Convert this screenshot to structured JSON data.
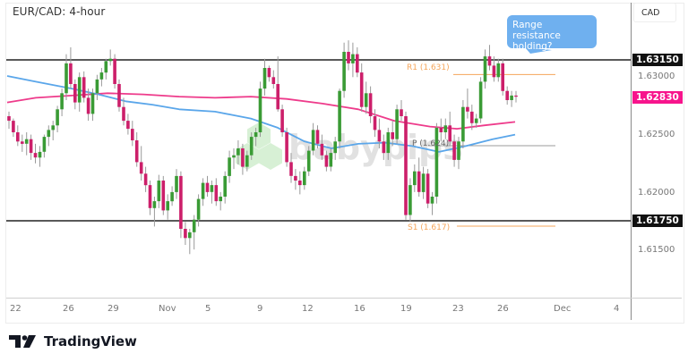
{
  "header": {
    "title": "EUR/CAD: 4-hour"
  },
  "price_axis": {
    "currency": "CAD",
    "ticks": [
      "1.63000",
      "1.62500",
      "1.62000",
      "1.61500"
    ],
    "resistance_tag": "1.63150",
    "support_tag": "1.61750",
    "current_price_tag": "1.62830"
  },
  "time_axis": {
    "ticks": [
      "22",
      "26",
      "29",
      "Nov",
      "5",
      "9",
      "12",
      "16",
      "19",
      "23",
      "26",
      "Dec",
      "4"
    ]
  },
  "annotation": {
    "text": "Range resistance holding?"
  },
  "pivots": {
    "r1": "R1 (1.631)",
    "p": "P (1.624)",
    "s1": "S1 (1.617)"
  },
  "watermark": "babypips",
  "footer": {
    "brand": "TradingView"
  },
  "colors": {
    "bull": "#3a9b35",
    "bear": "#cc1f6a",
    "wick": "#9a9a9a",
    "sma_pink": "#ee3b8b",
    "sma_blue": "#5aa6ea",
    "pivot_orange": "#f5a55a",
    "pivot_grey": "#9b9b9b",
    "range_line": "#222222",
    "current_tag": "#f7148c",
    "bubble": "#6fb0ef"
  },
  "chart_data": {
    "type": "candlestick",
    "title": "EUR/CAD: 4-hour",
    "xlabel": "",
    "ylabel": "CAD",
    "ylim": [
      1.612,
      1.634
    ],
    "x_ticks": [
      "22",
      "26",
      "29",
      "Nov",
      "5",
      "9",
      "12",
      "16",
      "19",
      "23",
      "26",
      "Dec",
      "4"
    ],
    "y_ticks": [
      1.615,
      1.62,
      1.625,
      1.63
    ],
    "horizontal_lines": [
      {
        "name": "Range resistance",
        "value": 1.6315,
        "color": "#222222"
      },
      {
        "name": "Range support",
        "value": 1.6175,
        "color": "#222222"
      },
      {
        "name": "R1",
        "value": 1.631,
        "color": "#f5a55a"
      },
      {
        "name": "P",
        "value": 1.624,
        "color": "#9b9b9b"
      },
      {
        "name": "S1",
        "value": 1.617,
        "color": "#f5a55a"
      }
    ],
    "current_price": 1.6283,
    "series": [
      {
        "name": "SMA (pink, slower)",
        "color": "#ee3b8b",
        "points": [
          [
            8,
            1.6278
          ],
          [
            40,
            1.6282
          ],
          [
            80,
            1.6284
          ],
          [
            120,
            1.6286
          ],
          [
            160,
            1.6285
          ],
          [
            200,
            1.6283
          ],
          [
            240,
            1.6282
          ],
          [
            280,
            1.6283
          ],
          [
            320,
            1.6281
          ],
          [
            360,
            1.6277
          ],
          [
            400,
            1.6272
          ],
          [
            440,
            1.6262
          ],
          [
            480,
            1.6257
          ],
          [
            510,
            1.6255
          ],
          [
            540,
            1.6258
          ],
          [
            575,
            1.6261
          ]
        ]
      },
      {
        "name": "SMA (blue, faster)",
        "color": "#5aa6ea",
        "points": [
          [
            8,
            1.6301
          ],
          [
            40,
            1.6296
          ],
          [
            80,
            1.629
          ],
          [
            110,
            1.6285
          ],
          [
            140,
            1.6279
          ],
          [
            170,
            1.6276
          ],
          [
            200,
            1.6272
          ],
          [
            240,
            1.627
          ],
          [
            280,
            1.6264
          ],
          [
            310,
            1.6256
          ],
          [
            340,
            1.6244
          ],
          [
            370,
            1.6238
          ],
          [
            400,
            1.6242
          ],
          [
            430,
            1.6243
          ],
          [
            460,
            1.624
          ],
          [
            490,
            1.6235
          ],
          [
            520,
            1.624
          ],
          [
            550,
            1.6246
          ],
          [
            575,
            1.625
          ]
        ]
      }
    ],
    "ohlc": [
      [
        1.6266,
        1.627,
        1.6255,
        1.6262
      ],
      [
        1.6262,
        1.6264,
        1.6248,
        1.6252
      ],
      [
        1.6252,
        1.6258,
        1.624,
        1.6244
      ],
      [
        1.6244,
        1.625,
        1.6235,
        1.6242
      ],
      [
        1.6242,
        1.6252,
        1.6232,
        1.6246
      ],
      [
        1.6246,
        1.625,
        1.6228,
        1.6234
      ],
      [
        1.6234,
        1.6242,
        1.6225,
        1.623
      ],
      [
        1.623,
        1.624,
        1.6222,
        1.6235
      ],
      [
        1.6235,
        1.625,
        1.623,
        1.6248
      ],
      [
        1.6248,
        1.6258,
        1.624,
        1.6254
      ],
      [
        1.6254,
        1.6262,
        1.6245,
        1.6258
      ],
      [
        1.6258,
        1.6275,
        1.6252,
        1.6272
      ],
      [
        1.6272,
        1.629,
        1.6266,
        1.6286
      ],
      [
        1.6286,
        1.632,
        1.628,
        1.6312
      ],
      [
        1.6312,
        1.6326,
        1.629,
        1.6294
      ],
      [
        1.6294,
        1.6298,
        1.6272,
        1.6278
      ],
      [
        1.6278,
        1.6304,
        1.627,
        1.63
      ],
      [
        1.63,
        1.6305,
        1.6278,
        1.6282
      ],
      [
        1.6282,
        1.629,
        1.6262,
        1.6268
      ],
      [
        1.6268,
        1.629,
        1.6262,
        1.6286
      ],
      [
        1.6286,
        1.6302,
        1.628,
        1.6298
      ],
      [
        1.6298,
        1.6308,
        1.6292,
        1.6304
      ],
      [
        1.6304,
        1.6316,
        1.6298,
        1.6314
      ],
      [
        1.6314,
        1.6324,
        1.631,
        1.6316
      ],
      [
        1.6316,
        1.632,
        1.629,
        1.6294
      ],
      [
        1.6294,
        1.6298,
        1.627,
        1.6274
      ],
      [
        1.6274,
        1.6282,
        1.6258,
        1.6262
      ],
      [
        1.6262,
        1.6268,
        1.625,
        1.6255
      ],
      [
        1.6255,
        1.6262,
        1.624,
        1.6245
      ],
      [
        1.6245,
        1.6252,
        1.6222,
        1.6226
      ],
      [
        1.6226,
        1.624,
        1.621,
        1.6216
      ],
      [
        1.6216,
        1.6222,
        1.62,
        1.6206
      ],
      [
        1.6206,
        1.621,
        1.618,
        1.6186
      ],
      [
        1.6186,
        1.6196,
        1.617,
        1.6192
      ],
      [
        1.6192,
        1.6215,
        1.6186,
        1.621
      ],
      [
        1.621,
        1.6214,
        1.618,
        1.6184
      ],
      [
        1.6184,
        1.6198,
        1.6176,
        1.6192
      ],
      [
        1.6192,
        1.6205,
        1.6188,
        1.62
      ],
      [
        1.62,
        1.622,
        1.6194,
        1.6214
      ],
      [
        1.6214,
        1.6218,
        1.616,
        1.6168
      ],
      [
        1.6168,
        1.6174,
        1.6154,
        1.616
      ],
      [
        1.616,
        1.6168,
        1.6146,
        1.6165
      ],
      [
        1.6165,
        1.618,
        1.615,
        1.6176
      ],
      [
        1.6176,
        1.6198,
        1.617,
        1.6194
      ],
      [
        1.6194,
        1.6212,
        1.6188,
        1.6208
      ],
      [
        1.6208,
        1.6214,
        1.6196,
        1.62
      ],
      [
        1.62,
        1.621,
        1.619,
        1.6206
      ],
      [
        1.6206,
        1.6212,
        1.6188,
        1.6192
      ],
      [
        1.6192,
        1.62,
        1.6184,
        1.6196
      ],
      [
        1.6196,
        1.6218,
        1.619,
        1.6214
      ],
      [
        1.6214,
        1.6236,
        1.6208,
        1.623
      ],
      [
        1.623,
        1.6238,
        1.622,
        1.6232
      ],
      [
        1.6232,
        1.6245,
        1.6224,
        1.6238
      ],
      [
        1.6238,
        1.6242,
        1.6215,
        1.6222
      ],
      [
        1.6222,
        1.6236,
        1.6218,
        1.6232
      ],
      [
        1.6232,
        1.6252,
        1.6228,
        1.6248
      ],
      [
        1.6248,
        1.6256,
        1.624,
        1.6252
      ],
      [
        1.6252,
        1.6296,
        1.6248,
        1.629
      ],
      [
        1.629,
        1.6316,
        1.6284,
        1.6308
      ],
      [
        1.6308,
        1.631,
        1.6296,
        1.63
      ],
      [
        1.63,
        1.6306,
        1.629,
        1.6294
      ],
      [
        1.6294,
        1.6318,
        1.627,
        1.6272
      ],
      [
        1.6272,
        1.6276,
        1.6248,
        1.6252
      ],
      [
        1.6252,
        1.6256,
        1.6222,
        1.6226
      ],
      [
        1.6226,
        1.6234,
        1.6208,
        1.6214
      ],
      [
        1.6214,
        1.622,
        1.6202,
        1.621
      ],
      [
        1.621,
        1.6218,
        1.6198,
        1.6206
      ],
      [
        1.6206,
        1.6222,
        1.6202,
        1.6218
      ],
      [
        1.6218,
        1.624,
        1.6214,
        1.6236
      ],
      [
        1.6236,
        1.626,
        1.6232,
        1.6254
      ],
      [
        1.6254,
        1.6258,
        1.6238,
        1.6242
      ],
      [
        1.6242,
        1.625,
        1.6228,
        1.6232
      ],
      [
        1.6232,
        1.6236,
        1.6218,
        1.6222
      ],
      [
        1.6222,
        1.6238,
        1.6218,
        1.6234
      ],
      [
        1.6234,
        1.6248,
        1.6228,
        1.6244
      ],
      [
        1.6244,
        1.629,
        1.6238,
        1.6288
      ],
      [
        1.6288,
        1.633,
        1.6282,
        1.6322
      ],
      [
        1.6322,
        1.6332,
        1.6306,
        1.6312
      ],
      [
        1.6312,
        1.633,
        1.63,
        1.632
      ],
      [
        1.632,
        1.6326,
        1.63,
        1.6304
      ],
      [
        1.6304,
        1.6312,
        1.627,
        1.6274
      ],
      [
        1.6274,
        1.6296,
        1.6268,
        1.6286
      ],
      [
        1.6286,
        1.6292,
        1.626,
        1.6266
      ],
      [
        1.6266,
        1.6272,
        1.6248,
        1.6254
      ],
      [
        1.6254,
        1.6264,
        1.6238,
        1.6244
      ],
      [
        1.6244,
        1.625,
        1.6228,
        1.6234
      ],
      [
        1.6234,
        1.6256,
        1.6228,
        1.6252
      ],
      [
        1.6252,
        1.6262,
        1.624,
        1.6246
      ],
      [
        1.6246,
        1.6276,
        1.6242,
        1.6272
      ],
      [
        1.6272,
        1.628,
        1.6262,
        1.6266
      ],
      [
        1.6266,
        1.627,
        1.6176,
        1.618
      ],
      [
        1.618,
        1.6212,
        1.6174,
        1.6206
      ],
      [
        1.6206,
        1.6224,
        1.62,
        1.6218
      ],
      [
        1.6218,
        1.623,
        1.6196,
        1.62
      ],
      [
        1.62,
        1.6222,
        1.6194,
        1.6216
      ],
      [
        1.6216,
        1.622,
        1.6186,
        1.619
      ],
      [
        1.619,
        1.62,
        1.618,
        1.6196
      ],
      [
        1.6196,
        1.626,
        1.619,
        1.6256
      ],
      [
        1.6256,
        1.6264,
        1.6244,
        1.6252
      ],
      [
        1.6252,
        1.6264,
        1.6246,
        1.6258
      ],
      [
        1.6258,
        1.627,
        1.624,
        1.6244
      ],
      [
        1.6244,
        1.625,
        1.6222,
        1.6228
      ],
      [
        1.6228,
        1.6248,
        1.622,
        1.6244
      ],
      [
        1.6244,
        1.628,
        1.6238,
        1.6274
      ],
      [
        1.6274,
        1.629,
        1.6264,
        1.627
      ],
      [
        1.627,
        1.6276,
        1.6254,
        1.626
      ],
      [
        1.626,
        1.6268,
        1.6256,
        1.6264
      ],
      [
        1.6264,
        1.63,
        1.626,
        1.6296
      ],
      [
        1.6296,
        1.6324,
        1.629,
        1.6318
      ],
      [
        1.6318,
        1.6328,
        1.6306,
        1.631
      ],
      [
        1.631,
        1.6318,
        1.6296,
        1.63
      ],
      [
        1.63,
        1.6316,
        1.6296,
        1.6312
      ],
      [
        1.6312,
        1.6316,
        1.6284,
        1.6288
      ],
      [
        1.6288,
        1.6292,
        1.6276,
        1.628
      ],
      [
        1.628,
        1.6288,
        1.6274,
        1.6284
      ],
      [
        1.6284,
        1.6288,
        1.6278,
        1.6283
      ]
    ]
  }
}
